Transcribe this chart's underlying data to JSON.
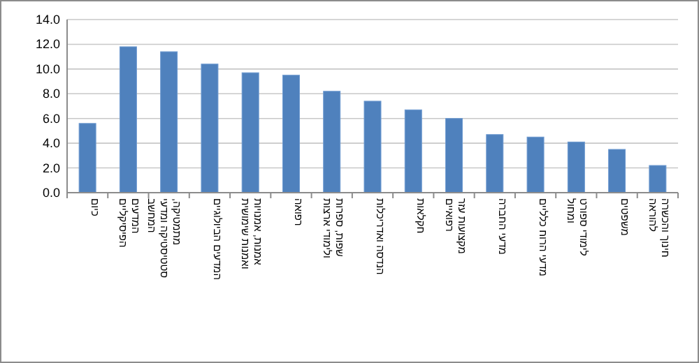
{
  "chart_data": {
    "type": "bar",
    "color": "#4f81bd",
    "categories": [
      "כיום",
      "המדעים הפיסיקליים",
      "מתמטיקה, סטטיסטיקה ומדעי המחשב",
      "המדעים הביולוגיים",
      "אמנות, אמנויות ואמנות שימושית",
      "רפואה",
      "שפות, ספרות ולימודי ארצות",
      "הנדסה ואדריכלות",
      "חקלאות",
      "מקצועות עזר רפואיים",
      "מדעי החברה",
      "מדעי הרוח כלליים",
      "לימודי ספורט ומחול",
      "משפטים",
      "חינוך והכשרה להוראה"
    ],
    "values": [
      5.6,
      11.8,
      11.4,
      10.4,
      9.7,
      9.5,
      8.2,
      7.4,
      6.7,
      6.0,
      4.7,
      4.5,
      4.1,
      3.5,
      2.2
    ],
    "ylim": [
      0,
      14
    ],
    "yticks": [
      {
        "value": 0,
        "label": "0.0"
      },
      {
        "value": 2,
        "label": "2.0"
      },
      {
        "value": 4,
        "label": "4.0"
      },
      {
        "value": 6,
        "label": "6.0"
      },
      {
        "value": 8,
        "label": "8.0"
      },
      {
        "value": 10,
        "label": "10.0"
      },
      {
        "value": 12,
        "label": "12.0"
      },
      {
        "value": 14,
        "label": "14.0"
      }
    ],
    "grid": "y"
  }
}
